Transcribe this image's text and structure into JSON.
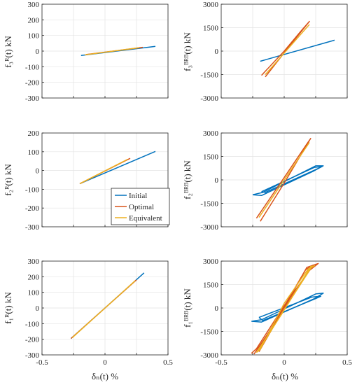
{
  "colors": {
    "initial": "#0072BD",
    "optimal": "#D95319",
    "equivalent": "#EDB120",
    "axis": "#262626",
    "grid": "#e3e3e3"
  },
  "x_axis": {
    "label": "δₙ(t)  %",
    "range": [
      -0.5,
      0.5
    ],
    "ticks": [
      -0.5,
      -0.25,
      0,
      0.25,
      0.5
    ],
    "tick_labels": [
      "-0.5",
      "",
      "0",
      "",
      "0.5"
    ]
  },
  "chart_data": [
    {
      "type": "line",
      "ylabel": "f₃ᴿ(t)  kN",
      "ylim": [
        -300,
        300
      ],
      "yticks": [
        -300,
        -200,
        -100,
        0,
        100,
        200,
        300
      ],
      "ytick_labels": [
        "-300",
        "-200",
        "-100",
        "0",
        "100",
        "200",
        "300"
      ],
      "series": [
        {
          "name": "Initial",
          "x": [
            -0.19,
            0.4
          ],
          "y": [
            -28,
            30
          ]
        },
        {
          "name": "Optimal",
          "x": [
            -0.15,
            0.3
          ],
          "y": [
            -22,
            24
          ]
        },
        {
          "name": "Equivalent",
          "x": [
            -0.16,
            0.27
          ],
          "y": [
            -24,
            22
          ]
        }
      ]
    },
    {
      "type": "line",
      "ylabel": "f₃ᴮᴿᴮ(t)  kN",
      "ylim": [
        -3000,
        3000
      ],
      "yticks": [
        -3000,
        -1500,
        0,
        1500,
        3000
      ],
      "ytick_labels": [
        "-3000",
        "-1500",
        "0",
        "1500",
        "3000"
      ],
      "series": [
        {
          "name": "Initial",
          "x": [
            -0.19,
            0.4
          ],
          "y": [
            -650,
            700
          ]
        },
        {
          "name": "Optimal",
          "x": [
            -0.15,
            0.03,
            0.2,
            0.14,
            0.0,
            -0.18
          ],
          "y": [
            -1650,
            200,
            1900,
            1350,
            0,
            -1550
          ]
        },
        {
          "name": "Equivalent",
          "x": [
            -0.15,
            0.2
          ],
          "y": [
            -1500,
            1700
          ]
        }
      ]
    },
    {
      "type": "line",
      "ylabel": "f₂ᴿ(t)  kN",
      "ylim": [
        -300,
        200
      ],
      "yticks": [
        -300,
        -200,
        -100,
        0,
        100,
        200
      ],
      "ytick_labels": [
        "-300",
        "-200",
        "-100",
        "0",
        "100",
        "200"
      ],
      "series": [
        {
          "name": "Initial",
          "x": [
            -0.2,
            0.4
          ],
          "y": [
            -70,
            102
          ]
        },
        {
          "name": "Optimal",
          "x": [
            -0.2,
            0.2
          ],
          "y": [
            -70,
            65
          ]
        },
        {
          "name": "Equivalent",
          "x": [
            -0.2,
            0.18
          ],
          "y": [
            -70,
            60
          ]
        }
      ]
    },
    {
      "type": "line",
      "ylabel": "f₂ᴮᴿᴮ(t)  kN",
      "ylim": [
        -3000,
        3000
      ],
      "yticks": [
        -3000,
        -1500,
        0,
        1500,
        3000
      ],
      "ytick_labels": [
        "-3000",
        "-1500",
        "0",
        "1500",
        "3000"
      ],
      "series": [
        {
          "name": "Initial",
          "x": [
            -0.25,
            -0.17,
            0.25,
            0.31,
            0.23,
            -0.18,
            -0.25
          ],
          "y": [
            -950,
            -800,
            900,
            900,
            550,
            -1000,
            -950
          ]
        },
        {
          "name": "Initial",
          "x": [
            -0.18,
            0.24,
            0.3,
            0.26,
            -0.15,
            -0.18
          ],
          "y": [
            -750,
            800,
            850,
            700,
            -800,
            -750
          ]
        },
        {
          "name": "Optimal",
          "x": [
            -0.19,
            0.0,
            0.21,
            0.18,
            0.0,
            -0.22
          ],
          "y": [
            -2650,
            -200,
            2650,
            2300,
            150,
            -2450
          ]
        },
        {
          "name": "Equivalent",
          "x": [
            -0.2,
            0.2
          ],
          "y": [
            -2400,
            2400
          ]
        }
      ]
    },
    {
      "type": "line",
      "ylabel": "f₁ᴿ(t)  kN",
      "ylim": [
        -300,
        300
      ],
      "yticks": [
        -300,
        -200,
        -100,
        0,
        100,
        200,
        300
      ],
      "ytick_labels": [
        "-300",
        "-200",
        "-100",
        "0",
        "100",
        "200",
        "300"
      ],
      "series": [
        {
          "name": "Initial",
          "x": [
            -0.27,
            0.31
          ],
          "y": [
            -195,
            225
          ]
        },
        {
          "name": "Optimal",
          "x": [
            -0.27,
            0.25
          ],
          "y": [
            -195,
            180
          ]
        },
        {
          "name": "Equivalent",
          "x": [
            -0.26,
            0.24
          ],
          "y": [
            -190,
            175
          ]
        }
      ]
    },
    {
      "type": "line",
      "ylabel": "f₁ᴮᴿᴮ(t)  kN",
      "ylim": [
        -3000,
        3000
      ],
      "yticks": [
        -3000,
        -1500,
        0,
        1500,
        3000
      ],
      "ytick_labels": [
        "-3000",
        "-1500",
        "0",
        "1500",
        "3000"
      ],
      "series": [
        {
          "name": "Initial",
          "x": [
            -0.26,
            -0.18,
            0.25,
            0.31,
            0.24,
            -0.18,
            -0.26
          ],
          "y": [
            -850,
            -750,
            900,
            950,
            600,
            -900,
            -850
          ]
        },
        {
          "name": "Initial",
          "x": [
            -0.2,
            0.22,
            0.29,
            0.25,
            -0.17,
            -0.2
          ],
          "y": [
            -600,
            700,
            750,
            600,
            -800,
            -600
          ]
        },
        {
          "name": "Optimal",
          "x": [
            -0.24,
            -0.05,
            0.18,
            0.27,
            0.2,
            0.0,
            -0.22,
            -0.26
          ],
          "y": [
            -2950,
            -700,
            2600,
            2850,
            2400,
            150,
            -2600,
            -2900
          ]
        },
        {
          "name": "Optimal",
          "x": [
            -0.2,
            0.0,
            0.23,
            0.17,
            -0.03,
            -0.2
          ],
          "y": [
            -2800,
            0,
            2750,
            2450,
            -300,
            -2600
          ]
        },
        {
          "name": "Equivalent",
          "x": [
            -0.22,
            -0.02,
            0.21,
            0.24,
            0.19,
            0.0,
            -0.19,
            -0.22
          ],
          "y": [
            -2850,
            -400,
            2650,
            2700,
            2500,
            300,
            -2650,
            -2850
          ]
        },
        {
          "name": "Equivalent",
          "x": [
            -0.2,
            0.0,
            0.22
          ],
          "y": [
            -2700,
            -100,
            2650
          ]
        }
      ]
    }
  ],
  "legend": {
    "placement": "bottom-right",
    "entries": [
      "Initial",
      "Optimal",
      "Equivalent"
    ]
  }
}
